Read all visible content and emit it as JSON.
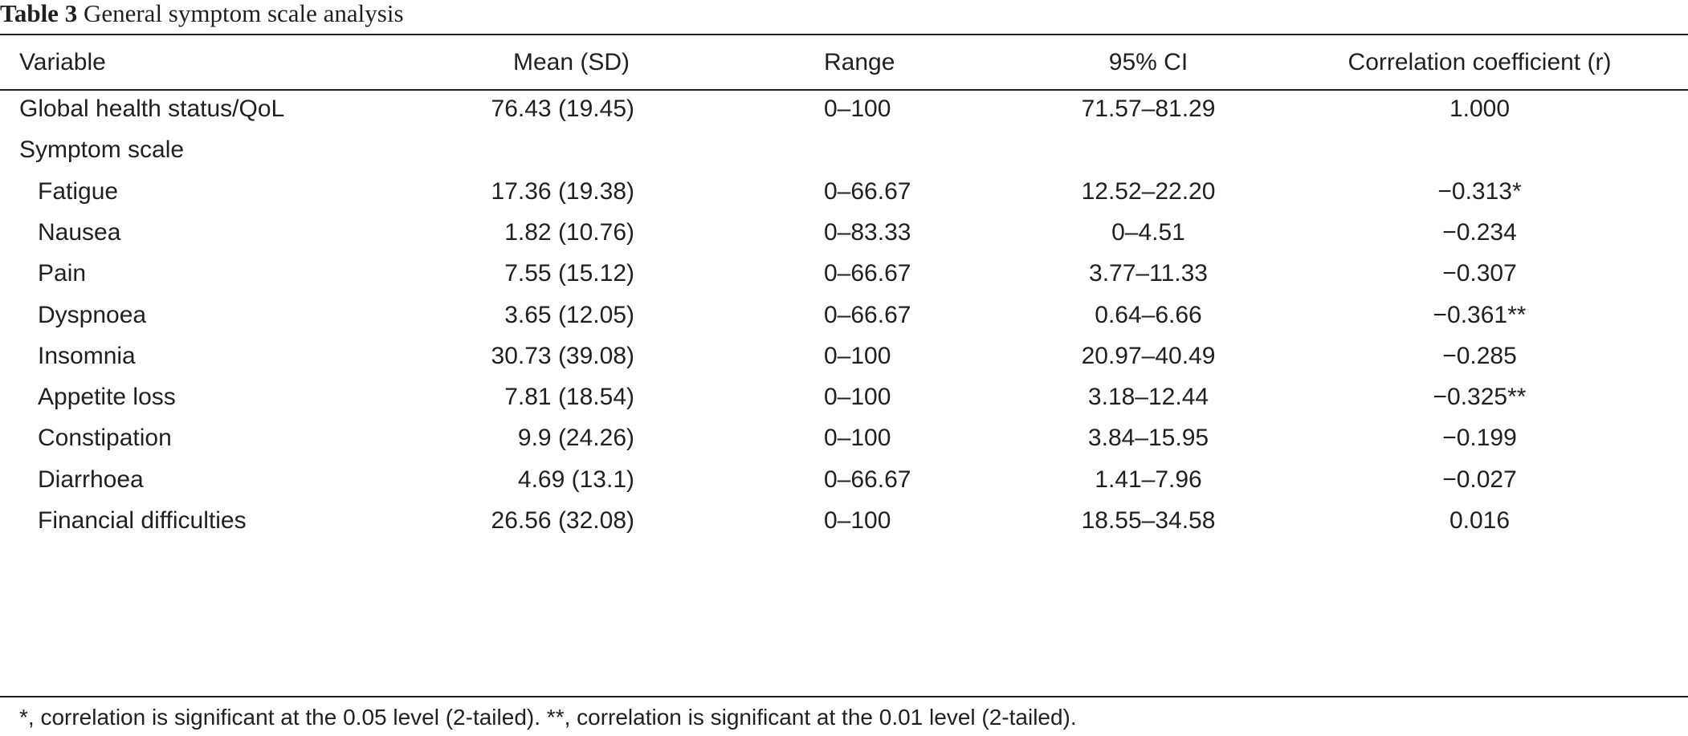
{
  "caption": {
    "label": "Table 3",
    "text": "General symptom scale analysis"
  },
  "header": {
    "variable": "Variable",
    "mean_sd": "Mean (SD)",
    "range": "Range",
    "ci": "95% CI",
    "correlation": "Correlation coefficient (r)"
  },
  "rows": [
    {
      "variable": "Global health status/QoL",
      "mean_sd": "76.43 (19.45)",
      "range": "0–100",
      "ci": "71.57–81.29",
      "r": "1.000",
      "indent": false
    },
    {
      "variable": "Symptom scale",
      "mean_sd": "",
      "range": "",
      "ci": "",
      "r": "",
      "indent": false
    },
    {
      "variable": "Fatigue",
      "mean_sd": "17.36 (19.38)",
      "range": "0–66.67",
      "ci": "12.52–22.20",
      "r": "−0.313*",
      "indent": true
    },
    {
      "variable": "Nausea",
      "mean_sd": "1.82 (10.76)",
      "range": "0–83.33",
      "ci": "0–4.51",
      "r": "−0.234",
      "indent": true
    },
    {
      "variable": "Pain",
      "mean_sd": "7.55 (15.12)",
      "range": "0–66.67",
      "ci": "3.77–11.33",
      "r": "−0.307",
      "indent": true
    },
    {
      "variable": "Dyspnoea",
      "mean_sd": "3.65 (12.05)",
      "range": "0–66.67",
      "ci": "0.64–6.66",
      "r": "−0.361**",
      "indent": true
    },
    {
      "variable": "Insomnia",
      "mean_sd": "30.73 (39.08)",
      "range": "0–100",
      "ci": "20.97–40.49",
      "r": "−0.285",
      "indent": true
    },
    {
      "variable": "Appetite loss",
      "mean_sd": "7.81 (18.54)",
      "range": "0–100",
      "ci": "3.18–12.44",
      "r": "−0.325**",
      "indent": true
    },
    {
      "variable": "Constipation",
      "mean_sd": "9.9 (24.26)",
      "range": "0–100",
      "ci": "3.84–15.95",
      "r": "−0.199",
      "indent": true
    },
    {
      "variable": "Diarrhoea",
      "mean_sd": "4.69 (13.1)",
      "range": "0–66.67",
      "ci": "1.41–7.96",
      "r": "−0.027",
      "indent": true
    },
    {
      "variable": "Financial difficulties",
      "mean_sd": "26.56 (32.08)",
      "range": "0–100",
      "ci": "18.55–34.58",
      "r": "0.016",
      "indent": true
    }
  ],
  "footnote": "*, correlation is significant at the 0.05 level (2-tailed). **, correlation is significant at the 0.01 level (2-tailed)."
}
